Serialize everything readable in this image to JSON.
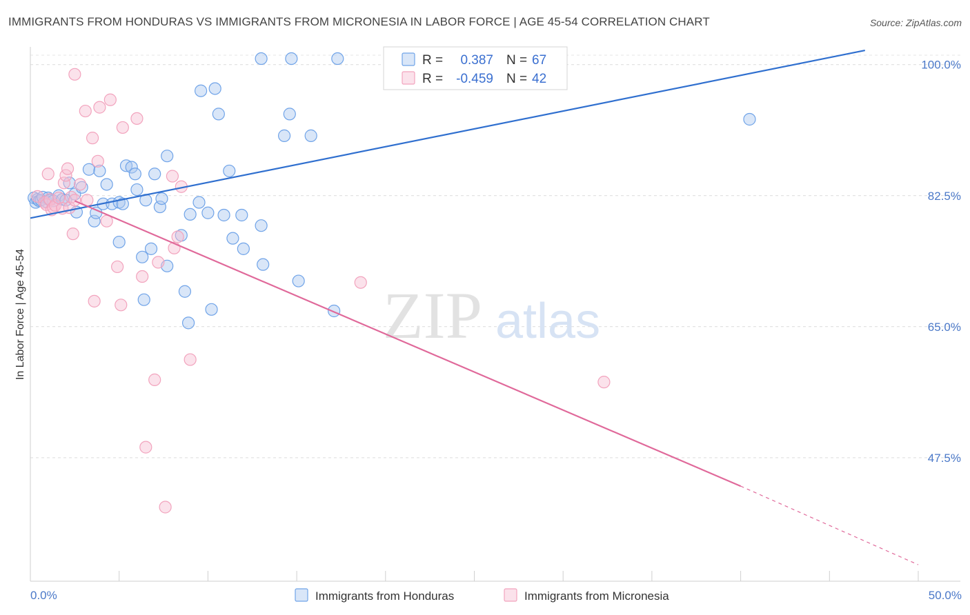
{
  "title": "IMMIGRANTS FROM HONDURAS VS IMMIGRANTS FROM MICRONESIA IN LABOR FORCE | AGE 45-54 CORRELATION CHART",
  "source": "Source: ZipAtlas.com",
  "watermark": {
    "zip": "ZIP",
    "atlas": "atlas"
  },
  "colors": {
    "honduras": "#6fa3e8",
    "honduras_line": "#2f6fcf",
    "micronesia": "#f2a3bd",
    "micronesia_line": "#e0699a",
    "tick_label": "#4a78c8"
  },
  "legend": {
    "rows": [
      {
        "r_label": "R =",
        "r_value": "0.387",
        "n_label": "N =",
        "n_value": "67"
      },
      {
        "r_label": "R =",
        "r_value": "-0.459",
        "n_label": "N =",
        "n_value": "42"
      }
    ]
  },
  "bottom_legend": [
    "Immigrants from Honduras",
    "Immigrants from Micronesia"
  ],
  "chart_data": {
    "type": "scatter",
    "title": "IMMIGRANTS FROM HONDURAS VS IMMIGRANTS FROM MICRONESIA IN LABOR FORCE | AGE 45-54 CORRELATION CHART",
    "xlabel": "",
    "ylabel": "In Labor Force | Age 45-54",
    "xlim": [
      0,
      50
    ],
    "ylim": [
      31,
      102
    ],
    "x_tick_labels": [
      "0.0%",
      "50.0%"
    ],
    "y_ticks": [
      47.5,
      65.0,
      82.5,
      100.0
    ],
    "y_tick_labels": [
      "47.5%",
      "65.0%",
      "82.5%",
      "100.0%"
    ],
    "grid": true,
    "legend_position": "top-center",
    "series": [
      {
        "name": "Immigrants from Honduras",
        "color": "#6fa3e8",
        "trend": {
          "x": [
            0,
            47
          ],
          "y": [
            79.5,
            101.9
          ]
        },
        "points": [
          [
            0.2,
            82.2
          ],
          [
            0.3,
            81.6
          ],
          [
            0.4,
            82.0
          ],
          [
            0.5,
            81.8
          ],
          [
            0.6,
            81.9
          ],
          [
            0.7,
            82.3
          ],
          [
            0.9,
            81.7
          ],
          [
            1.0,
            82.2
          ],
          [
            1.1,
            81.9
          ],
          [
            1.3,
            81.8
          ],
          [
            1.6,
            82.5
          ],
          [
            1.8,
            82.0
          ],
          [
            2.0,
            81.9
          ],
          [
            2.2,
            84.2
          ],
          [
            2.5,
            82.7
          ],
          [
            2.6,
            80.3
          ],
          [
            2.9,
            83.6
          ],
          [
            3.3,
            86.0
          ],
          [
            3.6,
            79.1
          ],
          [
            3.7,
            80.2
          ],
          [
            3.9,
            85.8
          ],
          [
            4.1,
            81.4
          ],
          [
            4.3,
            84.0
          ],
          [
            4.6,
            81.4
          ],
          [
            5.0,
            81.6
          ],
          [
            5.0,
            76.3
          ],
          [
            5.2,
            81.4
          ],
          [
            5.4,
            86.5
          ],
          [
            5.7,
            86.3
          ],
          [
            5.9,
            85.4
          ],
          [
            6.0,
            83.3
          ],
          [
            6.3,
            74.3
          ],
          [
            6.4,
            68.6
          ],
          [
            6.5,
            81.9
          ],
          [
            6.8,
            75.4
          ],
          [
            7.0,
            85.4
          ],
          [
            7.3,
            81.0
          ],
          [
            7.4,
            82.1
          ],
          [
            7.7,
            73.1
          ],
          [
            7.7,
            87.8
          ],
          [
            8.5,
            77.2
          ],
          [
            8.7,
            69.7
          ],
          [
            8.9,
            65.5
          ],
          [
            9.0,
            80.0
          ],
          [
            9.5,
            81.6
          ],
          [
            9.6,
            96.5
          ],
          [
            10.0,
            80.2
          ],
          [
            10.2,
            67.3
          ],
          [
            10.4,
            96.8
          ],
          [
            10.6,
            93.4
          ],
          [
            10.9,
            79.9
          ],
          [
            11.2,
            85.8
          ],
          [
            11.4,
            76.8
          ],
          [
            11.9,
            79.9
          ],
          [
            12.0,
            75.4
          ],
          [
            13.0,
            78.5
          ],
          [
            13.1,
            73.3
          ],
          [
            13.0,
            100.8
          ],
          [
            14.3,
            90.5
          ],
          [
            14.6,
            93.4
          ],
          [
            14.7,
            100.8
          ],
          [
            15.1,
            71.1
          ],
          [
            15.8,
            90.5
          ],
          [
            17.3,
            100.8
          ],
          [
            17.1,
            67.1
          ],
          [
            40.5,
            92.7
          ]
        ]
      },
      {
        "name": "Immigrants from Micronesia",
        "color": "#f2a3bd",
        "trend": {
          "x": [
            2.5,
            40
          ],
          "y": [
            81.8,
            43.7
          ]
        },
        "trend_dashed": {
          "x": [
            40,
            50
          ],
          "y": [
            43.7,
            33.2
          ]
        },
        "points": [
          [
            0.4,
            82.4
          ],
          [
            0.8,
            81.6
          ],
          [
            0.9,
            81.3
          ],
          [
            1.0,
            85.4
          ],
          [
            1.1,
            82.0
          ],
          [
            1.2,
            80.6
          ],
          [
            1.3,
            80.9
          ],
          [
            1.4,
            81.2
          ],
          [
            1.6,
            82.2
          ],
          [
            1.8,
            80.8
          ],
          [
            1.9,
            84.2
          ],
          [
            2.0,
            85.2
          ],
          [
            2.1,
            86.1
          ],
          [
            2.2,
            80.9
          ],
          [
            2.3,
            82.3
          ],
          [
            2.4,
            77.4
          ],
          [
            2.5,
            81.9
          ],
          [
            2.5,
            98.7
          ],
          [
            2.8,
            84.0
          ],
          [
            3.1,
            93.8
          ],
          [
            3.2,
            81.9
          ],
          [
            3.5,
            90.2
          ],
          [
            3.6,
            68.4
          ],
          [
            3.8,
            87.1
          ],
          [
            3.9,
            94.3
          ],
          [
            4.3,
            79.1
          ],
          [
            4.5,
            95.3
          ],
          [
            4.9,
            73.0
          ],
          [
            5.1,
            67.9
          ],
          [
            5.2,
            91.6
          ],
          [
            6.0,
            92.8
          ],
          [
            6.3,
            71.7
          ],
          [
            6.5,
            48.9
          ],
          [
            7.0,
            57.9
          ],
          [
            7.2,
            73.6
          ],
          [
            7.6,
            40.9
          ],
          [
            8.0,
            85.1
          ],
          [
            8.1,
            75.5
          ],
          [
            8.3,
            77.0
          ],
          [
            8.5,
            83.7
          ],
          [
            9.0,
            60.6
          ],
          [
            18.6,
            70.9
          ],
          [
            32.3,
            57.6
          ]
        ]
      }
    ]
  }
}
